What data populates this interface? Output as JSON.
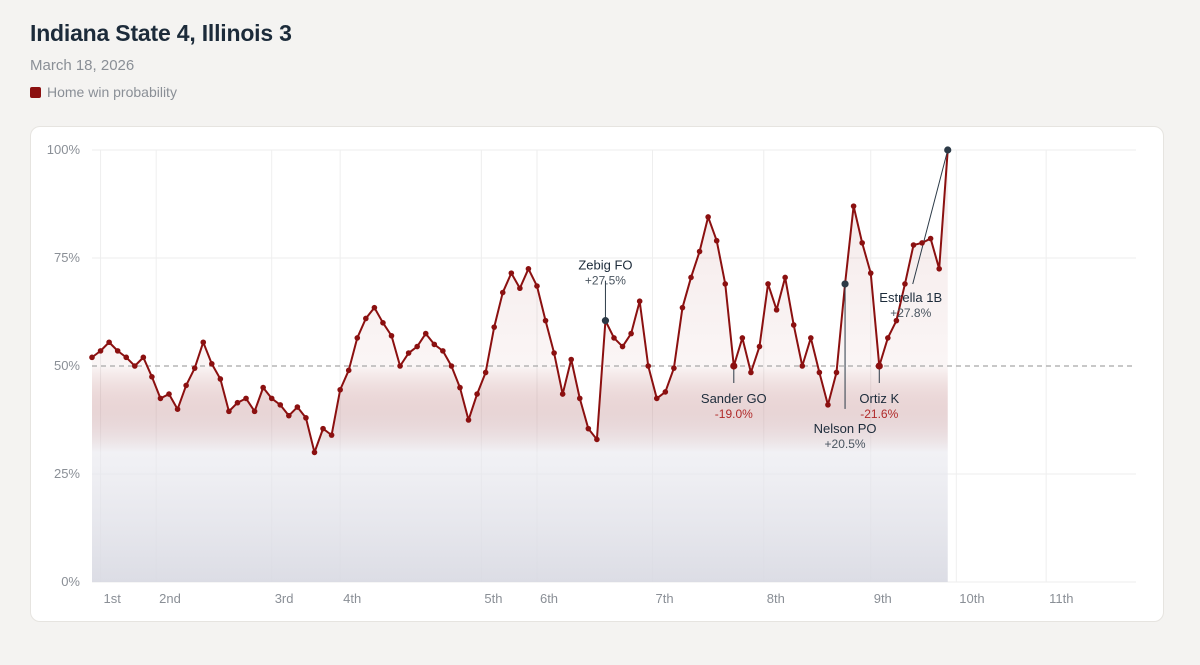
{
  "header": {
    "title": "Indiana State 4, Illinois 3",
    "date": "March 18, 2026",
    "legend_label": "Home win probability"
  },
  "colors": {
    "line": "#8b1010",
    "annotation_neutral": "#2c3a47",
    "delta_positive": "#4a5560",
    "delta_negative": "#b02a2a",
    "gridline": "#eeeeee",
    "baseline": "#a8a8a8"
  },
  "chart_data": {
    "type": "line",
    "title": "Indiana State 4, Illinois 3",
    "series_name": "Home win probability",
    "ylim": [
      0,
      100
    ],
    "yticks": [
      0,
      25,
      50,
      75,
      100
    ],
    "ytick_labels": [
      "0%",
      "25%",
      "50%",
      "75%",
      "100%"
    ],
    "reference_line": 50,
    "xlim": [
      0,
      122
    ],
    "innings": [
      {
        "label": "1st",
        "x": 1
      },
      {
        "label": "2nd",
        "x": 7.5
      },
      {
        "label": "3rd",
        "x": 21
      },
      {
        "label": "4th",
        "x": 29
      },
      {
        "label": "5th",
        "x": 45.5
      },
      {
        "label": "6th",
        "x": 52
      },
      {
        "label": "7th",
        "x": 65.5
      },
      {
        "label": "8th",
        "x": 78.5
      },
      {
        "label": "9th",
        "x": 91
      },
      {
        "label": "10th",
        "x": 101
      },
      {
        "label": "11th",
        "x": 111.5
      }
    ],
    "values": [
      52,
      53.5,
      55.5,
      53.5,
      52,
      50,
      52,
      47.5,
      42.5,
      43.5,
      40,
      45.5,
      49.5,
      55.5,
      50.5,
      47,
      39.5,
      41.5,
      42.5,
      39.5,
      45,
      42.5,
      41,
      38.5,
      40.5,
      38,
      30,
      35.5,
      34,
      44.5,
      49,
      56.5,
      61,
      63.5,
      60,
      57,
      50,
      53,
      54.5,
      57.5,
      55,
      53.5,
      50,
      45,
      37.5,
      43.5,
      48.5,
      59,
      67,
      71.5,
      68,
      72.5,
      68.5,
      60.5,
      53,
      43.5,
      51.5,
      42.5,
      35.5,
      33,
      60.5,
      56.5,
      54.5,
      57.5,
      65,
      50,
      42.5,
      44,
      49.5,
      63.5,
      70.5,
      76.5,
      84.5,
      79,
      69,
      50,
      56.5,
      48.5,
      54.5,
      69,
      63,
      70.5,
      59.5,
      50,
      56.5,
      48.5,
      41,
      48.5,
      69,
      87,
      78.5,
      71.5,
      50,
      56.5,
      60.5,
      69,
      78,
      78.5,
      79.5,
      72.5,
      100
    ],
    "annotations": [
      {
        "index": 60,
        "name": "Zebig FO",
        "delta": "+27.5%",
        "position": "above",
        "tone": "positive"
      },
      {
        "index": 75,
        "name": "Sander GO",
        "delta": "-19.0%",
        "position": "below",
        "tone": "negative"
      },
      {
        "index": 88,
        "name": "Nelson PO",
        "delta": "+20.5%",
        "position": "below-far",
        "tone": "positive"
      },
      {
        "index": 92,
        "name": "Ortiz K",
        "delta": "-21.6%",
        "position": "below",
        "tone": "negative"
      },
      {
        "index": 100,
        "name": "Estrella 1B",
        "delta": "+27.8%",
        "position": "below-left",
        "tone": "positive"
      }
    ]
  }
}
